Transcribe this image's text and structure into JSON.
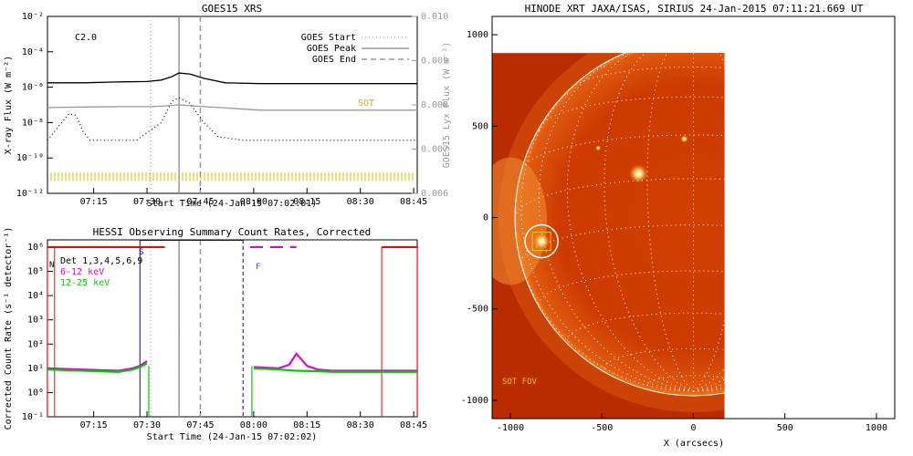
{
  "chart_data": [
    {
      "type": "line",
      "title": "GOES15 XRS",
      "xlabel": "Start Time (24-Jan-15 07:02:01)",
      "ylabel": "X-ray Flux (W m⁻²)",
      "y2label": "GOES15 Lyx Flux (W m⁻²)",
      "x_ticks": [
        "07:15",
        "07:30",
        "07:45",
        "08:00",
        "08:15",
        "08:30",
        "08:45"
      ],
      "xlim_min": [
        0,
        104
      ],
      "y_ticks": [
        "10⁻²",
        "10⁻⁴",
        "10⁻⁶",
        "10⁻⁸",
        "10⁻¹⁰",
        "10⁻¹²"
      ],
      "y_log_exponents": [
        -2,
        -4,
        -6,
        -8,
        -10,
        -12
      ],
      "y2_ticks": [
        "0.010",
        "0.009",
        "0.008",
        "0.007",
        "0.006"
      ],
      "y2lim": [
        0.006,
        0.01
      ],
      "class_label": "C2.0",
      "sot_label": "SOT",
      "legend": [
        {
          "label": "GOES Start",
          "style": "dotted"
        },
        {
          "label": "GOES Peak",
          "style": "solid"
        },
        {
          "label": "GOES End",
          "style": "dashed"
        }
      ],
      "events_min": {
        "start": 29,
        "peak": 37,
        "end": 43
      },
      "series": [
        {
          "color": "#000000",
          "style": "solid",
          "x": [
            0,
            10,
            20,
            28,
            32,
            35,
            37,
            40,
            44,
            50,
            60,
            70,
            80,
            90,
            104
          ],
          "log_y": [
            -5.75,
            -5.75,
            -5.7,
            -5.68,
            -5.6,
            -5.4,
            -5.2,
            -5.25,
            -5.5,
            -5.75,
            -5.8,
            -5.8,
            -5.8,
            -5.8,
            -5.8
          ]
        },
        {
          "color": "#999999",
          "style": "solid",
          "x": [
            0,
            20,
            30,
            37,
            44,
            60,
            80,
            104
          ],
          "log_y": [
            -7.15,
            -7.1,
            -7.1,
            -7.0,
            -7.1,
            -7.3,
            -7.3,
            -7.3
          ]
        },
        {
          "color": "#000000",
          "style": "dotted",
          "x": [
            0,
            4,
            6,
            8,
            10,
            12,
            25,
            32,
            35,
            37,
            40,
            44,
            48,
            55,
            65,
            75,
            85,
            95,
            104
          ],
          "log_y": [
            -9,
            -8,
            -7.5,
            -7.6,
            -8.5,
            -9,
            -9,
            -8,
            -6.8,
            -6.6,
            -6.9,
            -8,
            -8.8,
            -9,
            -9,
            -9,
            -9,
            -9,
            -9
          ]
        }
      ]
    },
    {
      "type": "line",
      "title": "HESSI Observing Summary Count Rates, Corrected",
      "xlabel": "Start Time (24-Jan-15 07:02:02)",
      "ylabel": "Corrected Count Rate (s⁻¹ detector⁻¹)",
      "x_ticks": [
        "07:15",
        "07:30",
        "07:45",
        "08:00",
        "08:15",
        "08:30",
        "08:45"
      ],
      "y_ticks": [
        "10⁶",
        "10⁵",
        "10⁴",
        "10³",
        "10²",
        "10¹",
        "10⁰",
        "10⁻¹"
      ],
      "y_log_exponents": [
        6,
        5,
        4,
        3,
        2,
        1,
        0,
        -1
      ],
      "legend": [
        {
          "label": "Det 1,3,4,5,6,9",
          "color": "#000000"
        },
        {
          "label": "6-12 keV",
          "color": "#e000e0"
        },
        {
          "label": "12-25 keV",
          "color": "#00cc00"
        }
      ],
      "marker_s": "S",
      "marker_f": "F",
      "marker_n": "N",
      "events_min": {
        "start": 29,
        "peak": 37,
        "end": 43
      },
      "series": [
        {
          "name": "6-12 keV",
          "color": "#e000e0",
          "x": [
            0,
            10,
            20,
            24,
            26,
            28,
            58,
            65,
            68,
            70,
            73,
            76,
            80,
            90,
            104
          ],
          "log_y": [
            1,
            0.95,
            0.9,
            1.0,
            1.1,
            1.3,
            1.05,
            1.0,
            1.15,
            1.6,
            1.1,
            0.95,
            0.9,
            0.9,
            0.9
          ]
        },
        {
          "name": "12-25 keV",
          "color": "#00cc00",
          "x": [
            0,
            10,
            20,
            24,
            26,
            28,
            58,
            65,
            70,
            76,
            80,
            90,
            104
          ],
          "log_y": [
            0.95,
            0.9,
            0.85,
            0.95,
            1.05,
            1.2,
            1.0,
            0.95,
            0.9,
            0.88,
            0.85,
            0.85,
            0.85
          ]
        }
      ],
      "attenuator_red_blocks": [
        [
          0,
          2
        ],
        [
          37,
          43
        ],
        [
          94,
          104
        ]
      ],
      "saa_segments": [
        {
          "from": 26,
          "to": 55,
          "level": 6.3,
          "color": "#0000cc"
        },
        {
          "from": 0,
          "to": 33,
          "level": 6.0,
          "color": "#ff0000"
        },
        {
          "from": 94,
          "to": 104,
          "level": 6.0,
          "color": "#ff0000"
        },
        {
          "from": 57,
          "to": 70,
          "level": 6.0,
          "color": "#e000e0",
          "style": "dashed"
        }
      ]
    },
    {
      "type": "heatmap",
      "title": "HINODE XRT JAXA/ISAS, SIRIUS 24-Jan-2015 07:11:21.669 UT",
      "xlabel": "X (arcsecs)",
      "x_ticks": [
        "-1000",
        "-500",
        "0",
        "500",
        "1000"
      ],
      "x_tick_values": [
        -1000,
        -500,
        0,
        500,
        1000
      ],
      "y_ticks": [
        "1000",
        "500",
        "0",
        "-500",
        "-1000"
      ],
      "y_tick_values": [
        1000,
        500,
        0,
        -500,
        -1000
      ],
      "xlim": [
        -1100,
        1100
      ],
      "ylim": [
        -1100,
        1100
      ],
      "image_extent": {
        "x": [
          -1100,
          170
        ],
        "y": [
          -1100,
          900
        ]
      },
      "solar_radius": 975,
      "fov_label": "SOT FOV",
      "target_circle": {
        "x": -830,
        "y": -130,
        "r": 90
      },
      "bright_regions": [
        {
          "x": -830,
          "y": -130,
          "r": 45
        },
        {
          "x": -300,
          "y": 240,
          "r": 50
        },
        {
          "x": -50,
          "y": 430,
          "r": 20
        },
        {
          "x": -520,
          "y": 380,
          "r": 15
        }
      ]
    }
  ]
}
